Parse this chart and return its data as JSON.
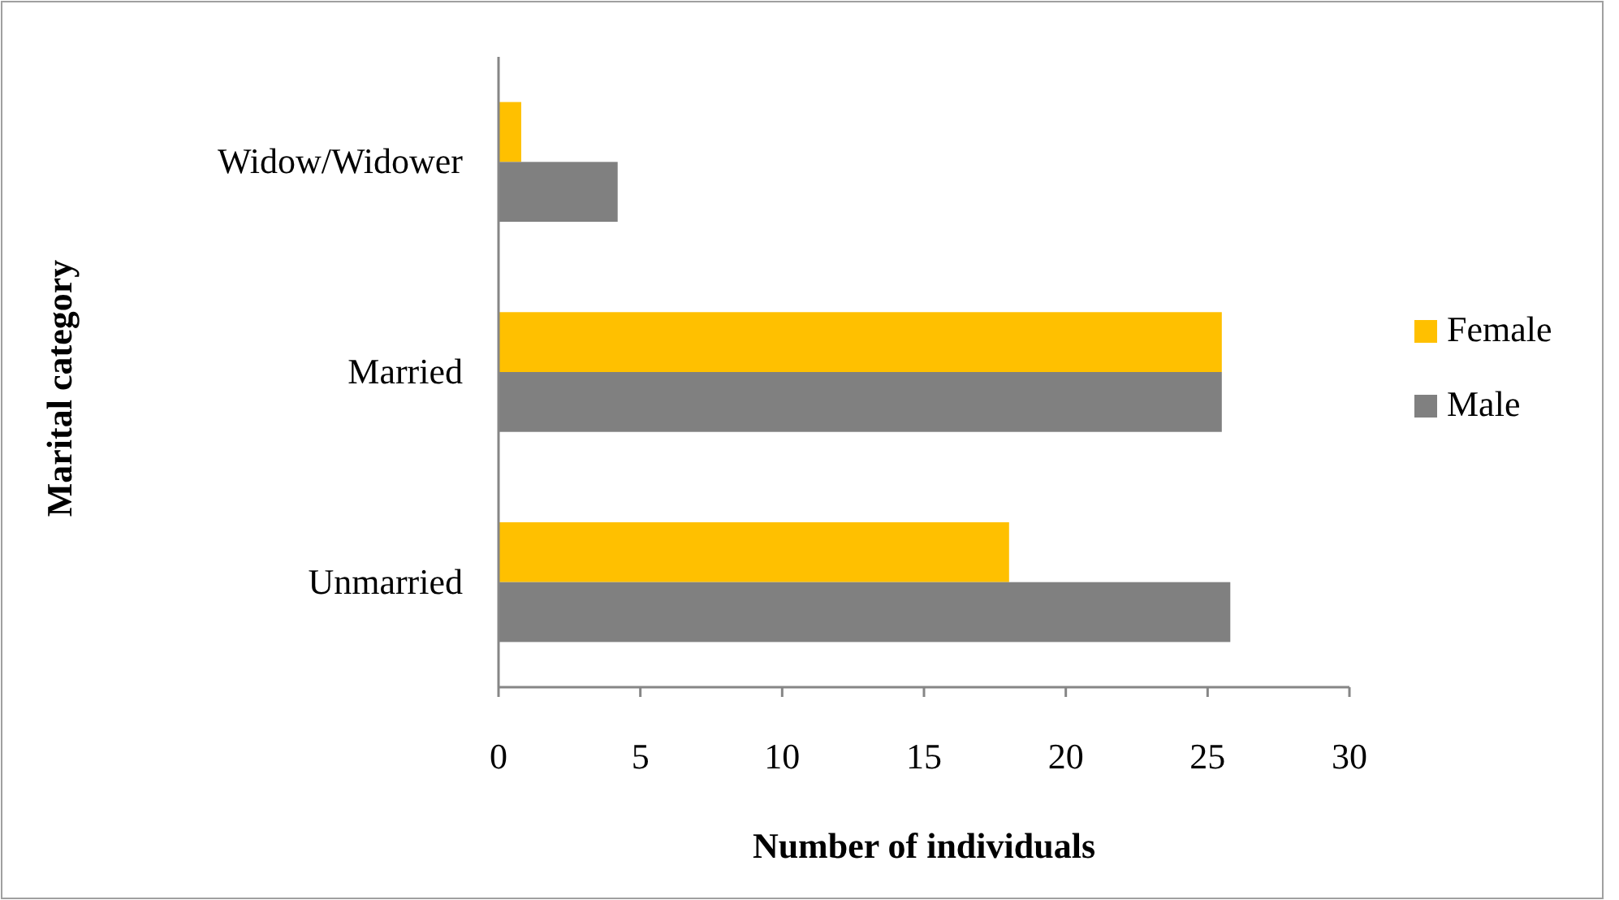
{
  "chart_data": {
    "type": "bar",
    "orientation": "horizontal",
    "xlabel": "Number of individuals",
    "ylabel": "Marital category",
    "categories": [
      "Widow/Widower",
      "Married",
      "Unmarried"
    ],
    "series": [
      {
        "name": "Female",
        "color": "#ffc000",
        "values": [
          0.8,
          25.5,
          18
        ]
      },
      {
        "name": "Male",
        "color": "#808080",
        "values": [
          4.2,
          25.5,
          25.8
        ]
      }
    ],
    "xlim": [
      0,
      30
    ],
    "xticks": [
      0,
      5,
      10,
      15,
      20,
      25,
      30
    ],
    "grid": false,
    "legend": "right"
  }
}
